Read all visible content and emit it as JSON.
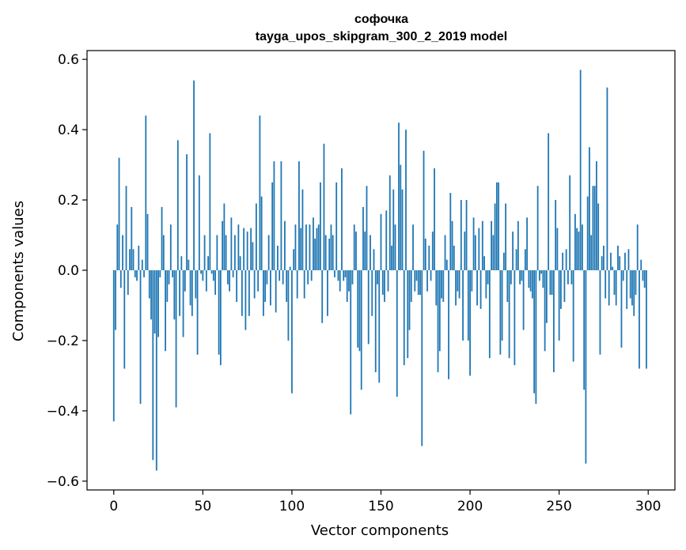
{
  "chart_data": {
    "type": "bar",
    "title": "софочка",
    "subtitle": "tayga_upos_skipgram_300_2_2019 model",
    "xlabel": "Vector components",
    "ylabel": "Components values",
    "xlim": [
      -15,
      315
    ],
    "ylim": [
      -0.625,
      0.625
    ],
    "xticks": [
      0,
      50,
      100,
      150,
      200,
      250,
      300
    ],
    "xtick_labels": [
      "0",
      "50",
      "100",
      "150",
      "200",
      "250",
      "300"
    ],
    "yticks": [
      -0.6,
      -0.4,
      -0.2,
      0.0,
      0.2,
      0.4,
      0.6
    ],
    "ytick_labels": [
      "−0.6",
      "−0.4",
      "−0.2",
      "0.0",
      "0.2",
      "0.4",
      "0.6"
    ],
    "grid": false,
    "legend": "none",
    "bar_color": "#1f77b4",
    "x": "component index 0..299",
    "values": [
      -0.43,
      -0.17,
      0.13,
      0.32,
      -0.05,
      0.1,
      -0.28,
      0.24,
      -0.07,
      0.06,
      0.18,
      0.06,
      -0.02,
      -0.03,
      0.07,
      -0.38,
      0.03,
      -0.02,
      0.44,
      0.16,
      -0.08,
      -0.14,
      -0.54,
      -0.18,
      -0.57,
      -0.19,
      -0.02,
      0.18,
      0.1,
      -0.23,
      -0.09,
      -0.04,
      0.13,
      -0.02,
      -0.14,
      -0.39,
      0.37,
      -0.13,
      0.04,
      -0.19,
      -0.06,
      0.33,
      0.03,
      -0.1,
      -0.13,
      0.54,
      -0.08,
      -0.24,
      0.27,
      -0.01,
      -0.03,
      0.1,
      -0.06,
      0.04,
      0.39,
      -0.01,
      -0.03,
      -0.07,
      0.1,
      -0.24,
      -0.27,
      0.14,
      0.19,
      0.1,
      -0.04,
      -0.06,
      0.15,
      -0.02,
      0.1,
      -0.09,
      0.13,
      0.04,
      -0.13,
      0.12,
      -0.17,
      0.11,
      -0.13,
      0.12,
      0.08,
      -0.08,
      0.19,
      -0.06,
      0.44,
      0.21,
      -0.13,
      -0.09,
      -0.04,
      0.1,
      -0.1,
      0.25,
      0.31,
      -0.12,
      0.07,
      -0.03,
      0.31,
      -0.04,
      0.14,
      -0.09,
      -0.2,
      0.01,
      -0.35,
      0.06,
      0.13,
      -0.08,
      0.31,
      0.12,
      0.23,
      -0.08,
      0.13,
      -0.04,
      0.13,
      -0.03,
      0.15,
      0.09,
      0.12,
      0.13,
      0.25,
      -0.15,
      0.36,
      0.1,
      -0.13,
      0.09,
      0.13,
      0.1,
      -0.02,
      0.25,
      -0.03,
      -0.06,
      0.29,
      -0.03,
      -0.02,
      -0.09,
      -0.06,
      -0.41,
      -0.04,
      0.13,
      0.11,
      -0.22,
      -0.23,
      -0.34,
      0.18,
      0.11,
      0.24,
      -0.21,
      0.1,
      -0.13,
      0.06,
      -0.29,
      -0.04,
      -0.32,
      0.16,
      -0.07,
      -0.09,
      0.17,
      -0.06,
      0.27,
      0.07,
      0.23,
      0.13,
      -0.36,
      0.42,
      0.3,
      0.23,
      -0.27,
      0.4,
      -0.25,
      -0.17,
      -0.09,
      0.13,
      -0.06,
      -0.03,
      -0.07,
      -0.07,
      -0.5,
      0.34,
      0.09,
      -0.06,
      0.07,
      -0.03,
      0.11,
      0.29,
      -0.1,
      -0.29,
      -0.23,
      -0.08,
      -0.09,
      0.1,
      0.03,
      -0.31,
      0.22,
      0.14,
      0.07,
      -0.1,
      -0.06,
      -0.08,
      0.2,
      -0.2,
      0.11,
      0.2,
      -0.2,
      -0.3,
      -0.06,
      0.15,
      0.1,
      -0.1,
      0.12,
      -0.11,
      0.14,
      0.04,
      -0.08,
      -0.04,
      -0.25,
      0.14,
      0.1,
      0.19,
      0.25,
      0.25,
      -0.24,
      -0.2,
      0.05,
      0.19,
      -0.09,
      -0.25,
      -0.04,
      0.11,
      -0.27,
      0.06,
      0.14,
      -0.04,
      -0.03,
      -0.17,
      0.06,
      0.15,
      -0.05,
      -0.06,
      -0.08,
      -0.35,
      -0.38,
      0.24,
      -0.03,
      -0.01,
      -0.05,
      -0.23,
      -0.15,
      0.39,
      -0.07,
      -0.07,
      -0.29,
      0.2,
      0.12,
      -0.2,
      -0.11,
      0.05,
      -0.09,
      0.06,
      -0.04,
      0.27,
      -0.04,
      -0.26,
      0.16,
      0.12,
      0.11,
      0.57,
      0.13,
      -0.34,
      -0.55,
      0.21,
      0.35,
      0.1,
      0.24,
      0.24,
      0.31,
      0.19,
      -0.24,
      0.04,
      0.07,
      -0.08,
      0.52,
      -0.1,
      0.05,
      0.01,
      -0.07,
      -0.1,
      0.07,
      0.04,
      -0.22,
      -0.03,
      0.05,
      -0.11,
      0.06,
      -0.08,
      -0.1,
      -0.13,
      -0.07,
      0.13,
      -0.28,
      0.03,
      -0.03,
      -0.05,
      -0.28
    ]
  }
}
